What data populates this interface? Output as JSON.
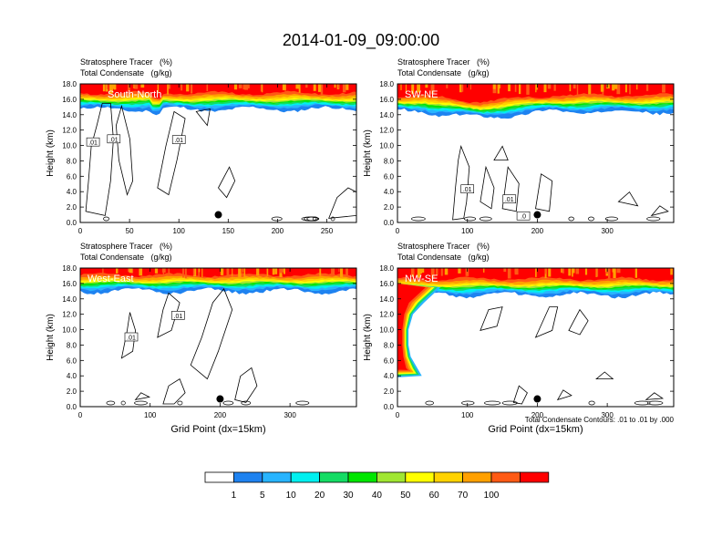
{
  "title": "2014-01-09_09:00:00",
  "colors": {
    "scale": [
      "#ffffff",
      "#1e82f0",
      "#28b4ff",
      "#00f0f0",
      "#14dc64",
      "#00e600",
      "#a0e632",
      "#ffff00",
      "#ffd200",
      "#ffa000",
      "#ff5a14",
      "#ff0000"
    ],
    "contour": "#000000",
    "marker": "#000000"
  },
  "footnote": "Total Condensate Contours: .01 to .01 by .000",
  "chart_data": [
    {
      "type": "heatmap",
      "panel_label": "South-North",
      "field_labels": [
        "Stratosphere Tracer   (%)",
        "Total Condensate   (g/kg)"
      ],
      "xlabel": "",
      "ylabel": "Height (km)",
      "xlim": [
        0,
        280
      ],
      "ylim": [
        0,
        18
      ],
      "xticks": [
        0,
        50,
        100,
        150,
        200,
        250
      ],
      "yticks": [
        0,
        2,
        4,
        6,
        8,
        10,
        12,
        14,
        16,
        18
      ],
      "tropopause_km": 15.5,
      "marker_x": 140,
      "marker_y_km": 1.0,
      "contour_labels": [
        {
          "text": ".01",
          "x": 13,
          "y": 10.4
        },
        {
          "text": ".01",
          "x": 34,
          "y": 10.8
        },
        {
          "text": ".01",
          "x": 100,
          "y": 10.7
        }
      ]
    },
    {
      "type": "heatmap",
      "panel_label": "SW-NE",
      "field_labels": [
        "Stratosphere Tracer   (%)",
        "Total Condensate   (g/kg)"
      ],
      "xlabel": "",
      "ylabel": "Height (km)",
      "xlim": [
        0,
        395
      ],
      "ylim": [
        0,
        18
      ],
      "xticks": [
        0,
        100,
        200,
        300
      ],
      "yticks": [
        0,
        2,
        4,
        6,
        8,
        10,
        12,
        14,
        16,
        18
      ],
      "tropopause_km": 15.2,
      "marker_x": 200,
      "marker_y_km": 1.0,
      "contour_labels": [
        {
          "text": ".01",
          "x": 100,
          "y": 4.3
        },
        {
          "text": ".01",
          "x": 160,
          "y": 3.0
        },
        {
          "text": ".0",
          "x": 180,
          "y": 0.8
        }
      ]
    },
    {
      "type": "heatmap",
      "panel_label": "West-East",
      "field_labels": [
        "Stratosphere Tracer   (%)",
        "Total Condensate   (g/kg)"
      ],
      "xlabel": "Grid Point (dx=15km)",
      "ylabel": "Height (km)",
      "xlim": [
        0,
        395
      ],
      "ylim": [
        0,
        18
      ],
      "xticks": [
        0,
        100,
        200,
        300
      ],
      "yticks": [
        0,
        2,
        4,
        6,
        8,
        10,
        12,
        14,
        16,
        18
      ],
      "tropopause_km": 15.8,
      "marker_x": 200,
      "marker_y_km": 1.0,
      "contour_labels": [
        {
          "text": ".01",
          "x": 73,
          "y": 9.0
        },
        {
          "text": ".01",
          "x": 140,
          "y": 11.8
        }
      ]
    },
    {
      "type": "heatmap",
      "panel_label": "NW-SE",
      "field_labels": [
        "Stratosphere Tracer   (%)",
        "Total Condensate   (g/kg)"
      ],
      "xlabel": "Grid Point (dx=15km)",
      "ylabel": "Height (km)",
      "xlim": [
        0,
        395
      ],
      "ylim": [
        0,
        18
      ],
      "xticks": [
        0,
        100,
        200,
        300
      ],
      "yticks": [
        0,
        2,
        4,
        6,
        8,
        10,
        12,
        14,
        16,
        18
      ],
      "tropopause_km": 15.3,
      "marker_x": 200,
      "marker_y_km": 1.0,
      "contour_labels": []
    }
  ],
  "legend": {
    "levels": [
      "1",
      "5",
      "10",
      "20",
      "30",
      "40",
      "50",
      "60",
      "70",
      "100"
    ]
  }
}
